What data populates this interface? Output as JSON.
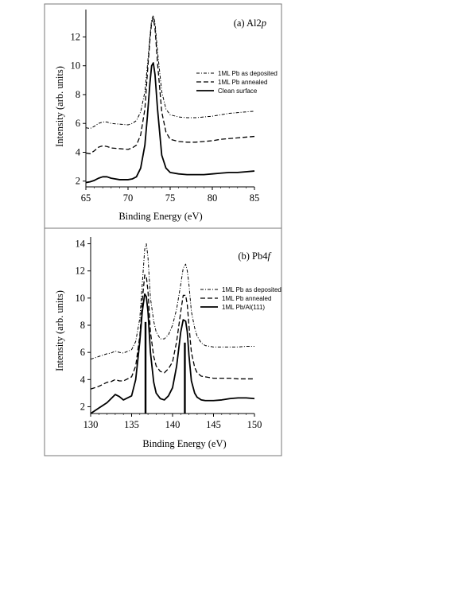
{
  "chart_data": [
    {
      "type": "line",
      "title": "(a) Al2p",
      "title_prefix": "(a) Al2",
      "title_italic": "p",
      "xlabel": "Binding Energy (eV)",
      "ylabel": "Intensity (arb. units)",
      "xlim": [
        65,
        85
      ],
      "ylim": [
        1.6,
        13.9
      ],
      "xticks": [
        "65",
        "70",
        "75",
        "80",
        "85"
      ],
      "yticks": [
        "2",
        "4",
        "6",
        "8",
        "10",
        "12"
      ],
      "xtick_values": [
        65,
        70,
        75,
        80,
        85
      ],
      "ytick_values": [
        2,
        4,
        6,
        8,
        10,
        12
      ],
      "legend_position": "right",
      "series": [
        {
          "name": "1ML Pb as deposited",
          "style": "dashdot",
          "x": [
            65,
            65.5,
            66,
            66.5,
            67,
            67.5,
            68,
            69,
            70,
            70.5,
            71,
            71.5,
            72,
            72.3,
            72.6,
            72.8,
            73,
            73.2,
            73.5,
            74,
            74.5,
            75,
            76,
            77,
            78,
            79,
            80,
            81,
            82,
            83,
            84,
            85
          ],
          "y": [
            5.7,
            5.65,
            5.8,
            6.0,
            6.1,
            6.1,
            6.0,
            5.95,
            5.9,
            6.0,
            6.2,
            6.8,
            8.2,
            10.0,
            12.0,
            13.2,
            13.5,
            13.0,
            11.0,
            8.2,
            7.0,
            6.6,
            6.45,
            6.4,
            6.4,
            6.45,
            6.5,
            6.6,
            6.7,
            6.75,
            6.8,
            6.85
          ]
        },
        {
          "name": "1ML Pb annealed",
          "style": "dashed",
          "x": [
            65,
            65.5,
            66,
            66.5,
            67,
            67.5,
            68,
            69,
            70,
            70.5,
            71,
            71.5,
            72,
            72.3,
            72.6,
            72.8,
            73,
            73.2,
            73.5,
            74,
            74.5,
            75,
            76,
            77,
            78,
            79,
            80,
            81,
            82,
            83,
            84,
            85
          ],
          "y": [
            3.95,
            3.9,
            4.1,
            4.35,
            4.45,
            4.4,
            4.3,
            4.25,
            4.2,
            4.3,
            4.5,
            5.2,
            7.0,
            9.5,
            11.8,
            13.0,
            13.3,
            12.6,
            10.2,
            6.8,
            5.4,
            4.9,
            4.75,
            4.7,
            4.7,
            4.75,
            4.8,
            4.9,
            4.95,
            5.0,
            5.05,
            5.1
          ]
        },
        {
          "name": "Clean surface",
          "style": "solid",
          "x": [
            65,
            65.5,
            66,
            66.5,
            67,
            67.5,
            68,
            69,
            70,
            70.5,
            71,
            71.5,
            72,
            72.3,
            72.6,
            72.8,
            73,
            73.2,
            73.5,
            74,
            74.5,
            75,
            76,
            77,
            78,
            79,
            80,
            81,
            82,
            83,
            84,
            85
          ],
          "y": [
            1.9,
            1.95,
            2.05,
            2.2,
            2.3,
            2.3,
            2.2,
            2.1,
            2.1,
            2.15,
            2.3,
            2.9,
            4.5,
            6.5,
            8.8,
            10.0,
            10.2,
            9.4,
            7.0,
            3.8,
            2.9,
            2.6,
            2.5,
            2.45,
            2.45,
            2.45,
            2.5,
            2.55,
            2.6,
            2.6,
            2.65,
            2.7
          ]
        }
      ]
    },
    {
      "type": "line",
      "title": "(b) Pb4f",
      "title_prefix": "(b) Pb4",
      "title_italic": "f",
      "xlabel": "Binding Energy (eV)",
      "ylabel": "Intensity (arb. units)",
      "xlim": [
        130,
        150
      ],
      "ylim": [
        1.5,
        14.5
      ],
      "xticks": [
        "130",
        "135",
        "140",
        "145",
        "150"
      ],
      "yticks": [
        "2",
        "4",
        "6",
        "8",
        "10",
        "12",
        "14"
      ],
      "xtick_values": [
        130,
        135,
        140,
        145,
        150
      ],
      "ytick_values": [
        2,
        4,
        6,
        8,
        10,
        12,
        14
      ],
      "legend_position": "right",
      "reference_lines": [
        136.7,
        141.5
      ],
      "series": [
        {
          "name": "1ML Pb as deposited",
          "style": "dashdot",
          "x": [
            130,
            131,
            132,
            132.5,
            133,
            133.5,
            134,
            135,
            135.5,
            136,
            136.3,
            136.6,
            136.8,
            137,
            137.3,
            137.7,
            138,
            138.5,
            139,
            139.5,
            140,
            140.5,
            141,
            141.3,
            141.6,
            141.8,
            142,
            142.3,
            142.7,
            143,
            143.5,
            144,
            145,
            146,
            147,
            148,
            149,
            150
          ],
          "y": [
            5.5,
            5.7,
            5.9,
            5.95,
            6.1,
            6.0,
            5.95,
            6.2,
            6.8,
            8.5,
            11.0,
            13.6,
            14.0,
            13.0,
            10.0,
            8.3,
            7.5,
            7.0,
            7.0,
            7.3,
            8.0,
            9.2,
            11.0,
            12.2,
            12.5,
            12.0,
            11.0,
            9.0,
            7.8,
            7.2,
            6.7,
            6.5,
            6.4,
            6.4,
            6.4,
            6.4,
            6.45,
            6.45
          ]
        },
        {
          "name": "1ML Pb annealed",
          "style": "dashed",
          "x": [
            130,
            131,
            132,
            132.5,
            133,
            133.5,
            134,
            135,
            135.5,
            136,
            136.3,
            136.6,
            136.8,
            137,
            137.3,
            137.7,
            138,
            138.5,
            139,
            139.5,
            140,
            140.5,
            141,
            141.3,
            141.6,
            141.8,
            142,
            142.3,
            142.7,
            143,
            143.5,
            144,
            145,
            146,
            147,
            148,
            149,
            150
          ],
          "y": [
            3.3,
            3.5,
            3.8,
            3.85,
            4.0,
            3.9,
            3.9,
            4.2,
            5.0,
            7.2,
            9.8,
            11.7,
            11.6,
            10.5,
            7.5,
            5.7,
            5.0,
            4.6,
            4.5,
            4.8,
            5.3,
            6.8,
            9.0,
            10.2,
            10.2,
            9.5,
            8.0,
            6.0,
            4.9,
            4.5,
            4.25,
            4.2,
            4.1,
            4.1,
            4.1,
            4.05,
            4.05,
            4.05
          ]
        },
        {
          "name": "1ML Pb/Al(111)",
          "style": "solid",
          "x": [
            130,
            131,
            132,
            132.5,
            133,
            133.5,
            134,
            135,
            135.5,
            136,
            136.3,
            136.6,
            136.8,
            137,
            137.3,
            137.7,
            138,
            138.5,
            139,
            139.5,
            140,
            140.5,
            141,
            141.3,
            141.6,
            141.8,
            142,
            142.3,
            142.7,
            143,
            143.5,
            144,
            145,
            146,
            147,
            148,
            149,
            150
          ],
          "y": [
            1.5,
            1.9,
            2.3,
            2.6,
            2.9,
            2.75,
            2.5,
            2.8,
            4.0,
            6.8,
            9.0,
            10.3,
            10.1,
            9.0,
            6.0,
            3.8,
            3.0,
            2.6,
            2.5,
            2.8,
            3.4,
            5.0,
            7.5,
            8.4,
            8.3,
            7.5,
            5.8,
            3.9,
            3.0,
            2.7,
            2.5,
            2.45,
            2.45,
            2.5,
            2.6,
            2.65,
            2.65,
            2.6
          ]
        }
      ]
    }
  ]
}
